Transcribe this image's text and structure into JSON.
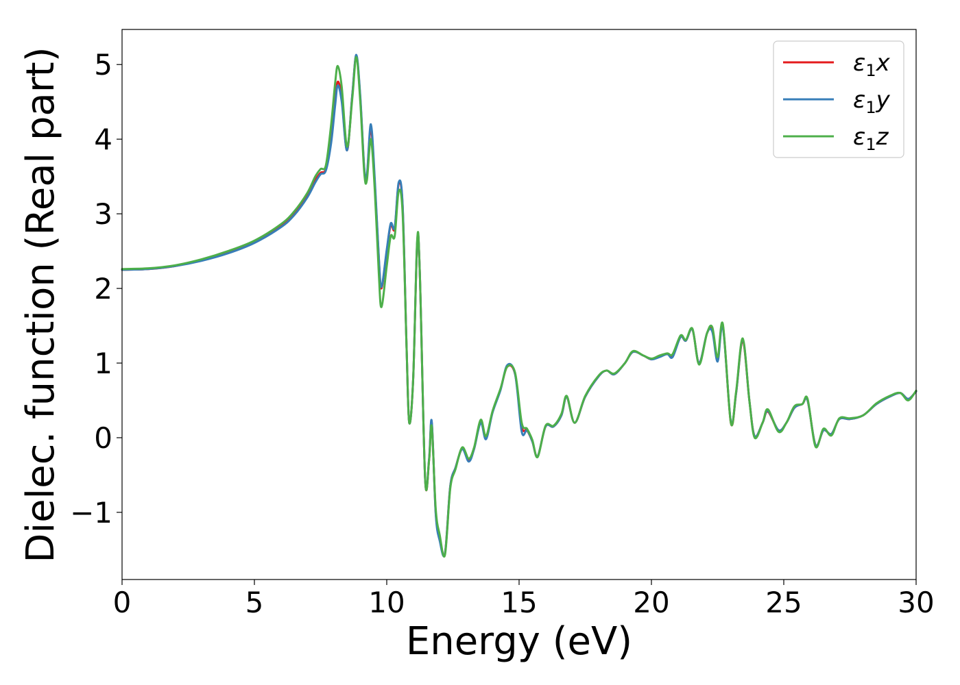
{
  "chart_data": {
    "type": "line",
    "title": "",
    "xlabel": "Energy (eV)",
    "ylabel": "Dielec. function (Real part)",
    "xlim": [
      0,
      30
    ],
    "ylim": [
      -1.9,
      5.47
    ],
    "xticks": [
      0,
      5,
      10,
      15,
      20,
      25,
      30
    ],
    "xtick_labels": [
      "0",
      "5",
      "10",
      "15",
      "20",
      "25",
      "30"
    ],
    "yticks": [
      -1,
      0,
      1,
      2,
      3,
      4,
      5
    ],
    "ytick_labels": [
      "−1",
      "0",
      "1",
      "2",
      "3",
      "4",
      "5"
    ],
    "grid": false,
    "legend_position": "top-right",
    "series": [
      {
        "name": "ε1x",
        "legend_main": "ε",
        "legend_sub": "1",
        "legend_suffix": "x",
        "color": "#e41a1c",
        "points": [
          [
            0,
            2.25
          ],
          [
            1,
            2.26
          ],
          [
            2,
            2.3
          ],
          [
            3,
            2.38
          ],
          [
            4,
            2.48
          ],
          [
            5,
            2.62
          ],
          [
            6,
            2.84
          ],
          [
            6.5,
            3.0
          ],
          [
            7,
            3.25
          ],
          [
            7.3,
            3.45
          ],
          [
            7.5,
            3.55
          ],
          [
            7.7,
            3.6
          ],
          [
            7.9,
            4.0
          ],
          [
            8.05,
            4.5
          ],
          [
            8.15,
            4.77
          ],
          [
            8.3,
            4.55
          ],
          [
            8.5,
            3.85
          ],
          [
            8.7,
            4.6
          ],
          [
            8.85,
            5.12
          ],
          [
            9.0,
            4.55
          ],
          [
            9.15,
            3.6
          ],
          [
            9.25,
            3.5
          ],
          [
            9.4,
            4.15
          ],
          [
            9.55,
            3.4
          ],
          [
            9.7,
            2.4
          ],
          [
            9.8,
            2.0
          ],
          [
            10.0,
            2.5
          ],
          [
            10.15,
            2.85
          ],
          [
            10.3,
            2.8
          ],
          [
            10.45,
            3.4
          ],
          [
            10.6,
            3.1
          ],
          [
            10.75,
            1.2
          ],
          [
            10.85,
            0.2
          ],
          [
            11.0,
            0.8
          ],
          [
            11.15,
            2.6
          ],
          [
            11.25,
            2.2
          ],
          [
            11.45,
            -0.55
          ],
          [
            11.6,
            -0.3
          ],
          [
            11.7,
            0.2
          ],
          [
            11.85,
            -1.0
          ],
          [
            12.0,
            -1.35
          ],
          [
            12.2,
            -1.55
          ],
          [
            12.4,
            -0.65
          ],
          [
            12.6,
            -0.4
          ],
          [
            12.85,
            -0.15
          ],
          [
            13.1,
            -0.3
          ],
          [
            13.3,
            -0.15
          ],
          [
            13.55,
            0.22
          ],
          [
            13.75,
            0.0
          ],
          [
            14.0,
            0.35
          ],
          [
            14.3,
            0.65
          ],
          [
            14.55,
            0.95
          ],
          [
            14.85,
            0.85
          ],
          [
            15.1,
            0.15
          ],
          [
            15.3,
            0.1
          ],
          [
            15.5,
            -0.05
          ],
          [
            15.7,
            -0.25
          ],
          [
            16.0,
            0.15
          ],
          [
            16.3,
            0.15
          ],
          [
            16.6,
            0.3
          ],
          [
            16.8,
            0.55
          ],
          [
            17.1,
            0.2
          ],
          [
            17.5,
            0.55
          ],
          [
            18.0,
            0.82
          ],
          [
            18.3,
            0.9
          ],
          [
            18.6,
            0.85
          ],
          [
            19.0,
            1.0
          ],
          [
            19.3,
            1.15
          ],
          [
            19.7,
            1.1
          ],
          [
            20.0,
            1.05
          ],
          [
            20.3,
            1.1
          ],
          [
            20.6,
            1.12
          ],
          [
            20.8,
            1.1
          ],
          [
            21.1,
            1.35
          ],
          [
            21.3,
            1.3
          ],
          [
            21.55,
            1.45
          ],
          [
            21.8,
            1.0
          ],
          [
            22.1,
            1.4
          ],
          [
            22.3,
            1.45
          ],
          [
            22.5,
            1.05
          ],
          [
            22.7,
            1.5
          ],
          [
            23.0,
            0.2
          ],
          [
            23.2,
            0.6
          ],
          [
            23.45,
            1.3
          ],
          [
            23.7,
            0.5
          ],
          [
            23.9,
            0.02
          ],
          [
            24.2,
            0.2
          ],
          [
            24.4,
            0.35
          ],
          [
            24.8,
            0.1
          ],
          [
            25.1,
            0.2
          ],
          [
            25.4,
            0.4
          ],
          [
            25.7,
            0.45
          ],
          [
            25.9,
            0.5
          ],
          [
            26.2,
            -0.1
          ],
          [
            26.5,
            0.1
          ],
          [
            26.8,
            0.05
          ],
          [
            27.1,
            0.25
          ],
          [
            27.5,
            0.25
          ],
          [
            28.0,
            0.3
          ],
          [
            28.5,
            0.45
          ],
          [
            29.0,
            0.55
          ],
          [
            29.4,
            0.6
          ],
          [
            29.7,
            0.52
          ],
          [
            30.0,
            0.62
          ]
        ]
      },
      {
        "name": "ε1y",
        "legend_main": "ε",
        "legend_sub": "1",
        "legend_suffix": "y",
        "color": "#377eb8",
        "points": [
          [
            0,
            2.25
          ],
          [
            1,
            2.26
          ],
          [
            2,
            2.3
          ],
          [
            3,
            2.37
          ],
          [
            4,
            2.47
          ],
          [
            5,
            2.61
          ],
          [
            6,
            2.82
          ],
          [
            6.5,
            2.98
          ],
          [
            7,
            3.22
          ],
          [
            7.3,
            3.42
          ],
          [
            7.5,
            3.53
          ],
          [
            7.7,
            3.58
          ],
          [
            7.9,
            3.95
          ],
          [
            8.05,
            4.45
          ],
          [
            8.15,
            4.72
          ],
          [
            8.3,
            4.5
          ],
          [
            8.5,
            3.85
          ],
          [
            8.7,
            4.6
          ],
          [
            8.85,
            5.13
          ],
          [
            9.0,
            4.58
          ],
          [
            9.15,
            3.62
          ],
          [
            9.25,
            3.52
          ],
          [
            9.4,
            4.2
          ],
          [
            9.55,
            3.45
          ],
          [
            9.7,
            2.42
          ],
          [
            9.8,
            2.02
          ],
          [
            10.0,
            2.52
          ],
          [
            10.15,
            2.87
          ],
          [
            10.3,
            2.82
          ],
          [
            10.45,
            3.42
          ],
          [
            10.6,
            3.12
          ],
          [
            10.75,
            1.2
          ],
          [
            10.85,
            0.2
          ],
          [
            11.0,
            0.8
          ],
          [
            11.15,
            2.62
          ],
          [
            11.25,
            2.2
          ],
          [
            11.45,
            -0.55
          ],
          [
            11.6,
            -0.28
          ],
          [
            11.7,
            0.22
          ],
          [
            11.85,
            -1.02
          ],
          [
            12.0,
            -1.38
          ],
          [
            12.2,
            -1.55
          ],
          [
            12.4,
            -0.65
          ],
          [
            12.6,
            -0.4
          ],
          [
            12.85,
            -0.15
          ],
          [
            13.1,
            -0.32
          ],
          [
            13.3,
            -0.15
          ],
          [
            13.55,
            0.2
          ],
          [
            13.75,
            -0.02
          ],
          [
            14.0,
            0.34
          ],
          [
            14.3,
            0.64
          ],
          [
            14.55,
            0.97
          ],
          [
            14.85,
            0.85
          ],
          [
            15.1,
            0.08
          ],
          [
            15.3,
            0.1
          ],
          [
            15.5,
            -0.05
          ],
          [
            15.7,
            -0.25
          ],
          [
            16.0,
            0.15
          ],
          [
            16.3,
            0.15
          ],
          [
            16.6,
            0.3
          ],
          [
            16.8,
            0.55
          ],
          [
            17.1,
            0.2
          ],
          [
            17.5,
            0.55
          ],
          [
            18.0,
            0.82
          ],
          [
            18.3,
            0.9
          ],
          [
            18.6,
            0.85
          ],
          [
            19.0,
            1.0
          ],
          [
            19.3,
            1.15
          ],
          [
            19.7,
            1.1
          ],
          [
            20.0,
            1.05
          ],
          [
            20.3,
            1.08
          ],
          [
            20.6,
            1.12
          ],
          [
            20.8,
            1.08
          ],
          [
            21.1,
            1.35
          ],
          [
            21.3,
            1.3
          ],
          [
            21.55,
            1.45
          ],
          [
            21.8,
            1.0
          ],
          [
            22.1,
            1.4
          ],
          [
            22.3,
            1.42
          ],
          [
            22.5,
            1.02
          ],
          [
            22.7,
            1.48
          ],
          [
            23.0,
            0.22
          ],
          [
            23.2,
            0.6
          ],
          [
            23.45,
            1.32
          ],
          [
            23.7,
            0.5
          ],
          [
            23.9,
            0.02
          ],
          [
            24.2,
            0.2
          ],
          [
            24.4,
            0.36
          ],
          [
            24.8,
            0.1
          ],
          [
            25.1,
            0.2
          ],
          [
            25.4,
            0.4
          ],
          [
            25.7,
            0.45
          ],
          [
            25.9,
            0.5
          ],
          [
            26.2,
            -0.1
          ],
          [
            26.5,
            0.1
          ],
          [
            26.8,
            0.05
          ],
          [
            27.1,
            0.25
          ],
          [
            27.5,
            0.25
          ],
          [
            28.0,
            0.3
          ],
          [
            28.5,
            0.45
          ],
          [
            29.0,
            0.55
          ],
          [
            29.4,
            0.6
          ],
          [
            29.7,
            0.52
          ],
          [
            30.0,
            0.62
          ]
        ]
      },
      {
        "name": "ε1z",
        "legend_main": "ε",
        "legend_sub": "1",
        "legend_suffix": "z",
        "color": "#4daf4a",
        "points": [
          [
            0,
            2.26
          ],
          [
            1,
            2.27
          ],
          [
            2,
            2.31
          ],
          [
            3,
            2.39
          ],
          [
            4,
            2.5
          ],
          [
            5,
            2.64
          ],
          [
            6,
            2.86
          ],
          [
            6.5,
            3.03
          ],
          [
            7,
            3.28
          ],
          [
            7.3,
            3.5
          ],
          [
            7.5,
            3.6
          ],
          [
            7.7,
            3.65
          ],
          [
            7.9,
            4.2
          ],
          [
            8.05,
            4.75
          ],
          [
            8.15,
            4.98
          ],
          [
            8.3,
            4.7
          ],
          [
            8.5,
            3.9
          ],
          [
            8.7,
            4.55
          ],
          [
            8.85,
            5.1
          ],
          [
            9.0,
            4.5
          ],
          [
            9.15,
            3.55
          ],
          [
            9.25,
            3.45
          ],
          [
            9.4,
            4.0
          ],
          [
            9.55,
            3.3
          ],
          [
            9.7,
            2.2
          ],
          [
            9.8,
            1.75
          ],
          [
            10.0,
            2.3
          ],
          [
            10.15,
            2.7
          ],
          [
            10.3,
            2.7
          ],
          [
            10.45,
            3.3
          ],
          [
            10.6,
            3.0
          ],
          [
            10.75,
            1.2
          ],
          [
            10.85,
            0.2
          ],
          [
            11.0,
            0.8
          ],
          [
            11.15,
            2.65
          ],
          [
            11.25,
            2.2
          ],
          [
            11.45,
            -0.55
          ],
          [
            11.6,
            -0.3
          ],
          [
            11.7,
            0.15
          ],
          [
            11.85,
            -0.95
          ],
          [
            12.0,
            -1.3
          ],
          [
            12.2,
            -1.57
          ],
          [
            12.4,
            -0.68
          ],
          [
            12.6,
            -0.42
          ],
          [
            12.85,
            -0.13
          ],
          [
            13.1,
            -0.28
          ],
          [
            13.3,
            -0.13
          ],
          [
            13.55,
            0.24
          ],
          [
            13.75,
            0.02
          ],
          [
            14.0,
            0.36
          ],
          [
            14.3,
            0.66
          ],
          [
            14.55,
            0.95
          ],
          [
            14.85,
            0.87
          ],
          [
            15.1,
            0.2
          ],
          [
            15.3,
            0.12
          ],
          [
            15.5,
            -0.03
          ],
          [
            15.7,
            -0.26
          ],
          [
            16.0,
            0.16
          ],
          [
            16.3,
            0.16
          ],
          [
            16.6,
            0.32
          ],
          [
            16.8,
            0.56
          ],
          [
            17.1,
            0.2
          ],
          [
            17.5,
            0.56
          ],
          [
            18.0,
            0.83
          ],
          [
            18.3,
            0.9
          ],
          [
            18.6,
            0.86
          ],
          [
            19.0,
            1.0
          ],
          [
            19.3,
            1.16
          ],
          [
            19.7,
            1.1
          ],
          [
            20.0,
            1.06
          ],
          [
            20.3,
            1.1
          ],
          [
            20.6,
            1.13
          ],
          [
            20.8,
            1.12
          ],
          [
            21.1,
            1.37
          ],
          [
            21.3,
            1.31
          ],
          [
            21.55,
            1.46
          ],
          [
            21.8,
            0.98
          ],
          [
            22.1,
            1.4
          ],
          [
            22.3,
            1.48
          ],
          [
            22.5,
            1.08
          ],
          [
            22.7,
            1.52
          ],
          [
            23.0,
            0.2
          ],
          [
            23.2,
            0.62
          ],
          [
            23.45,
            1.33
          ],
          [
            23.7,
            0.5
          ],
          [
            23.9,
            0.0
          ],
          [
            24.2,
            0.2
          ],
          [
            24.4,
            0.38
          ],
          [
            24.8,
            0.08
          ],
          [
            25.1,
            0.2
          ],
          [
            25.4,
            0.42
          ],
          [
            25.7,
            0.45
          ],
          [
            25.9,
            0.52
          ],
          [
            26.2,
            -0.12
          ],
          [
            26.5,
            0.12
          ],
          [
            26.8,
            0.03
          ],
          [
            27.1,
            0.26
          ],
          [
            27.5,
            0.26
          ],
          [
            28.0,
            0.3
          ],
          [
            28.5,
            0.46
          ],
          [
            29.0,
            0.56
          ],
          [
            29.4,
            0.6
          ],
          [
            29.7,
            0.5
          ],
          [
            30.0,
            0.63
          ]
        ]
      }
    ]
  }
}
